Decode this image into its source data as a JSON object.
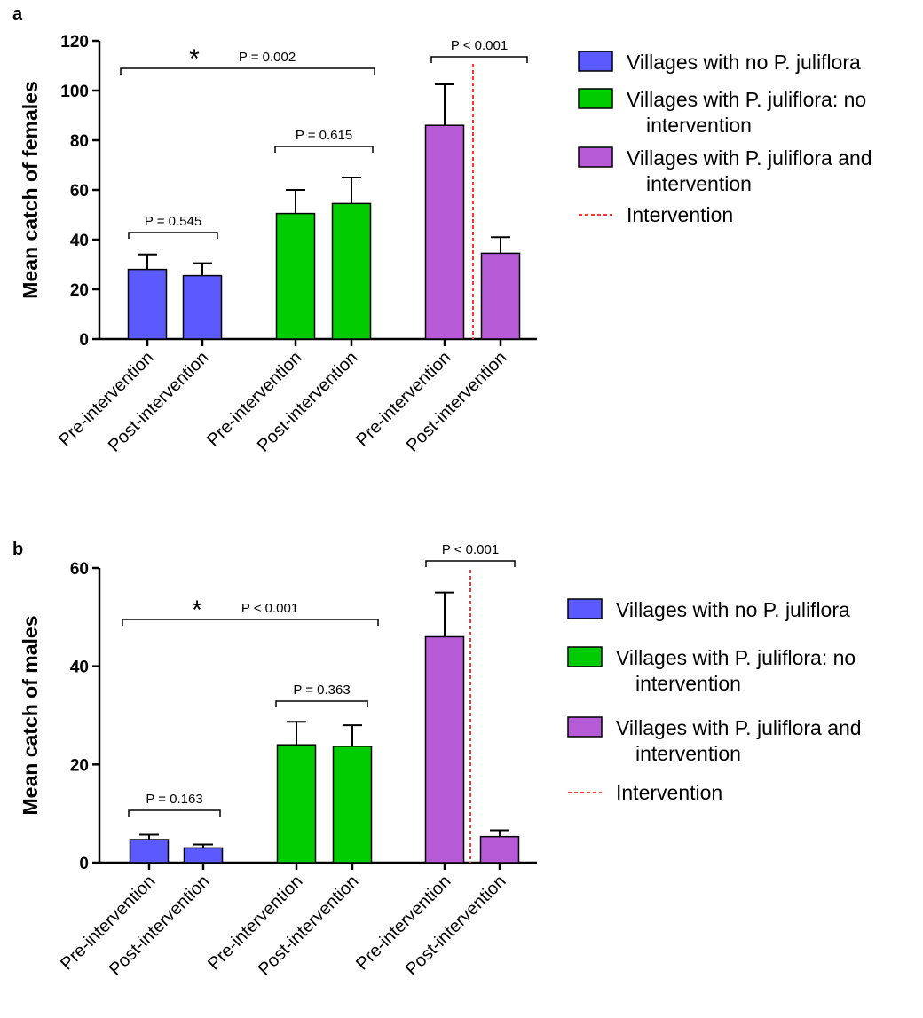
{
  "chart_data": [
    {
      "type": "bar",
      "panel": "a",
      "ylabel": "Mean catch of females",
      "categories": [
        "Pre-intervention",
        "Post-intervention",
        "Pre-intervention",
        "Post-intervention",
        "Pre-intervention",
        "Post-intervention"
      ],
      "series": [
        {
          "name": "Villages with no P. juliflora",
          "color": "#5a5aff",
          "values": [
            28,
            25.5,
            null,
            null,
            null,
            null
          ],
          "errors": [
            6,
            5,
            null,
            null,
            null,
            null
          ]
        },
        {
          "name": "Villages with P. juliflora: no intervention",
          "color": "#00cc00",
          "values": [
            null,
            null,
            50.5,
            54.5,
            null,
            null
          ],
          "errors": [
            null,
            null,
            9.5,
            10.5,
            null,
            null
          ]
        },
        {
          "name": "Villages with P. juliflora and intervention",
          "color": "#b65ad6",
          "values": [
            null,
            null,
            null,
            null,
            86,
            34.5
          ],
          "errors": [
            null,
            null,
            null,
            null,
            16.5,
            6.5
          ]
        }
      ],
      "intervention": {
        "name": "Intervention",
        "color": "#ff3333"
      },
      "annotations": [
        {
          "text": "P = 0.545"
        },
        {
          "text": "P = 0.615"
        },
        {
          "text": "P = 0.002",
          "marker": "*"
        },
        {
          "text": "P < 0.001"
        }
      ],
      "ylim": [
        0,
        120
      ],
      "yticks": [
        0,
        20,
        40,
        60,
        80,
        100,
        120
      ]
    },
    {
      "type": "bar",
      "panel": "b",
      "ylabel": "Mean catch of males",
      "categories": [
        "Pre-intervention",
        "Post-intervention",
        "Pre-intervention",
        "Post-intervention",
        "Pre-intervention",
        "Post-intervention"
      ],
      "series": [
        {
          "name": "Villages with no P. juliflora",
          "color": "#5a5aff",
          "values": [
            4.7,
            3,
            null,
            null,
            null,
            null
          ],
          "errors": [
            1,
            0.7,
            null,
            null,
            null,
            null
          ]
        },
        {
          "name": "Villages with P. juliflora: no intervention",
          "color": "#00cc00",
          "values": [
            null,
            null,
            24,
            23.7,
            null,
            null
          ],
          "errors": [
            null,
            null,
            4.7,
            4.3,
            null,
            null
          ]
        },
        {
          "name": "Villages with P. juliflora and intervention",
          "color": "#b65ad6",
          "values": [
            null,
            null,
            null,
            null,
            46,
            5.3
          ],
          "errors": [
            null,
            null,
            null,
            null,
            9,
            1.3
          ]
        }
      ],
      "intervention": {
        "name": "Intervention",
        "color": "#ff3333"
      },
      "annotations": [
        {
          "text": "P = 0.163"
        },
        {
          "text": "P = 0.363"
        },
        {
          "text": "P < 0.001",
          "marker": "*"
        },
        {
          "text": "P < 0.001"
        }
      ],
      "ylim": [
        0,
        60
      ],
      "yticks": [
        0,
        20,
        40,
        60
      ]
    }
  ]
}
